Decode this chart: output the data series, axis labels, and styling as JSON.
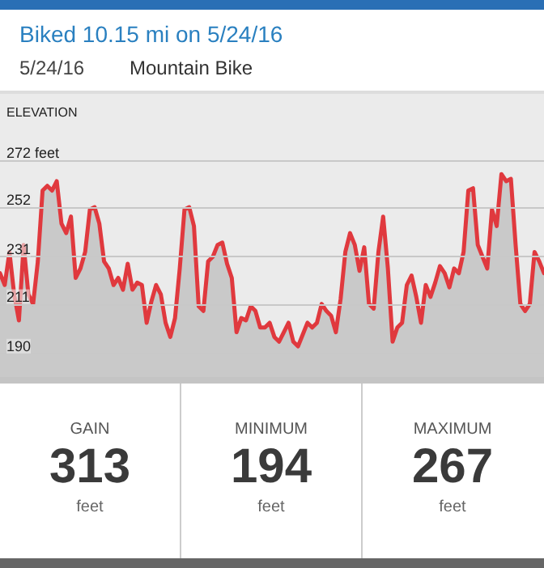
{
  "chart_data": {
    "type": "area",
    "title": "Biked 10.15 mi on 5/24/16",
    "subtitle": "5/24/16",
    "ylabel": "ELEVATION",
    "annotations": [
      "Mountain Bike",
      "GAIN",
      "313",
      "feet",
      "MINIMUM",
      "194",
      "feet",
      "MAXIMUM",
      "267",
      "feet"
    ],
    "categories": [
      null,
      null,
      null,
      null,
      null,
      null,
      null,
      null,
      null,
      null,
      null,
      null,
      null,
      null,
      null,
      null,
      null,
      null,
      null,
      null,
      null,
      null,
      null,
      null,
      null,
      null,
      null,
      null,
      null,
      null,
      null,
      null,
      null,
      null,
      null,
      null,
      null,
      null,
      null,
      null,
      null,
      null,
      null,
      null,
      null,
      null,
      null,
      null,
      null,
      null,
      null,
      null,
      null,
      null,
      null,
      null,
      null,
      null,
      null,
      null,
      null,
      null,
      null,
      null,
      null,
      null,
      null,
      null,
      null,
      null,
      null,
      null,
      null,
      null,
      null,
      null,
      null,
      null,
      null,
      null,
      null,
      null,
      null,
      null,
      null,
      null,
      null,
      null,
      null,
      null,
      null,
      null,
      null,
      null,
      null,
      null,
      null,
      null,
      null,
      null,
      null,
      null,
      null,
      null,
      null,
      null,
      null,
      null,
      null,
      null,
      null,
      null,
      null,
      null,
      null,
      null
    ],
    "series": [
      {
        "color": "#e0393e",
        "values": [
          224,
          219,
          233,
          215,
          204,
          236,
          215,
          211,
          229,
          259,
          261,
          259,
          263,
          245,
          241,
          248,
          222,
          226,
          233,
          251,
          252,
          245,
          229,
          226,
          219,
          222,
          217,
          228,
          217,
          220,
          219,
          203,
          212,
          219,
          215,
          203,
          197,
          205,
          226,
          251,
          252,
          244,
          210,
          208,
          229,
          231,
          236,
          237,
          228,
          222,
          199,
          205,
          204,
          210,
          208,
          201,
          201,
          203,
          197,
          195,
          199,
          203,
          195,
          193,
          198,
          203,
          201,
          203,
          211,
          208,
          206,
          199,
          213,
          233,
          241,
          236,
          225,
          235,
          211,
          209,
          233,
          248,
          226,
          195,
          201,
          203,
          219,
          223,
          214,
          203,
          219,
          214,
          220,
          227,
          224,
          218,
          226,
          224,
          233,
          259,
          260,
          236,
          231,
          226,
          251,
          244,
          266,
          263,
          264,
          236,
          211,
          208,
          211,
          233,
          229,
          224
        ]
      }
    ],
    "ylim": [
      180,
      300
    ],
    "yticks": [
      190,
      211,
      231,
      252,
      {
        "value": 272,
        "label": "272 feet"
      }
    ],
    "grid": "y",
    "line_style": "solid"
  }
}
